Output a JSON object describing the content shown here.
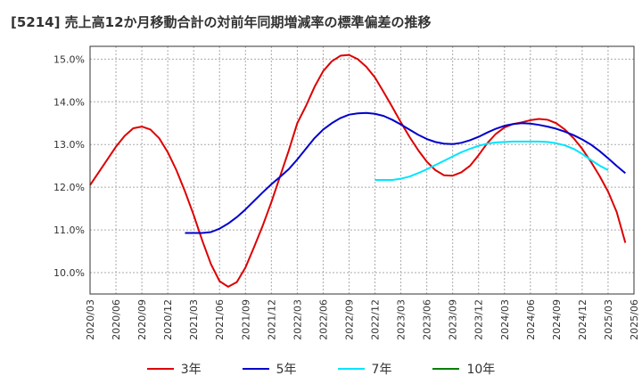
{
  "chart_data": {
    "type": "line",
    "title": "[5214]  売上高12か月移動合計の対前年同期増減率の標準偏差の推移",
    "xlabel": "",
    "ylabel": "",
    "ylim": [
      9.5,
      15.3
    ],
    "yticks": [
      "10.0%",
      "11.0%",
      "12.0%",
      "13.0%",
      "14.0%",
      "15.0%"
    ],
    "yticks_values": [
      10,
      11,
      12,
      13,
      14,
      15
    ],
    "xticks": [
      "2020/03",
      "2020/06",
      "2020/09",
      "2020/12",
      "2021/03",
      "2021/06",
      "2021/09",
      "2021/12",
      "2022/03",
      "2022/06",
      "2022/09",
      "2022/12",
      "2023/03",
      "2023/06",
      "2023/09",
      "2023/12",
      "2024/03",
      "2024/06",
      "2024/09",
      "2024/12",
      "2025/03",
      "2025/06"
    ],
    "grid": true,
    "legend_position": "bottom",
    "x_start": "2020/03",
    "series": [
      {
        "name": "3年",
        "color": "#dd0000",
        "start": "2020/03",
        "values": [
          12.05,
          12.35,
          12.65,
          12.95,
          13.2,
          13.38,
          13.42,
          13.35,
          13.15,
          12.82,
          12.4,
          11.9,
          11.35,
          10.75,
          10.2,
          9.8,
          9.67,
          9.78,
          10.12,
          10.6,
          11.1,
          11.65,
          12.25,
          12.85,
          13.5,
          13.9,
          14.35,
          14.72,
          14.95,
          15.08,
          15.1,
          15.0,
          14.82,
          14.57,
          14.23,
          13.88,
          13.52,
          13.18,
          12.87,
          12.6,
          12.4,
          12.28,
          12.27,
          12.35,
          12.5,
          12.75,
          13.03,
          13.25,
          13.4,
          13.48,
          13.52,
          13.57,
          13.6,
          13.58,
          13.5,
          13.35,
          13.15,
          12.9,
          12.6,
          12.27,
          11.9,
          11.42,
          10.7
        ]
      },
      {
        "name": "5年",
        "color": "#0000cc",
        "start": "2021/02",
        "values": [
          10.93,
          10.93,
          10.93,
          10.95,
          11.03,
          11.15,
          11.3,
          11.48,
          11.68,
          11.88,
          12.07,
          12.24,
          12.42,
          12.65,
          12.9,
          13.15,
          13.35,
          13.5,
          13.62,
          13.7,
          13.73,
          13.74,
          13.72,
          13.67,
          13.58,
          13.47,
          13.35,
          13.23,
          13.13,
          13.06,
          13.02,
          13.01,
          13.04,
          13.1,
          13.18,
          13.28,
          13.37,
          13.44,
          13.48,
          13.5,
          13.49,
          13.46,
          13.42,
          13.37,
          13.3,
          13.22,
          13.12,
          13.0,
          12.85,
          12.68,
          12.5,
          12.33
        ]
      },
      {
        "name": "7年",
        "color": "#00e5ff",
        "start": "2022/12",
        "values": [
          12.17,
          12.17,
          12.17,
          12.2,
          12.25,
          12.33,
          12.42,
          12.52,
          12.62,
          12.72,
          12.82,
          12.9,
          12.97,
          13.02,
          13.05,
          13.06,
          13.07,
          13.07,
          13.07,
          13.07,
          13.06,
          13.03,
          12.98,
          12.9,
          12.78,
          12.64,
          12.51,
          12.4
        ]
      },
      {
        "name": "10年",
        "color": "#008000",
        "start": "2022/12",
        "values": []
      }
    ]
  }
}
